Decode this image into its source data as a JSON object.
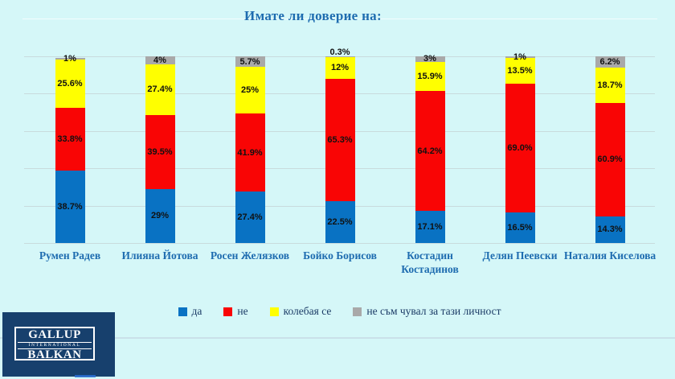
{
  "title": {
    "text": "Имате ли доверие на:",
    "color": "#1E6CB0"
  },
  "chart_data": {
    "type": "bar",
    "stacked": true,
    "title": "Имате ли доверие на:",
    "unit": "%",
    "categories": [
      "Румен Радев",
      "Илияна Йотова",
      "Росен Желязков",
      "Бойко Борисов",
      "Костадин Костадинов",
      "Делян Пеевски",
      "Наталия Киселова"
    ],
    "series": [
      {
        "name": "да",
        "color": "#0972C3",
        "values": [
          38.7,
          29,
          27.4,
          22.5,
          17.1,
          16.5,
          14.3
        ],
        "labels": [
          "38.7%",
          "29%",
          "27.4%",
          "22.5%",
          "17.1%",
          "16.5%",
          "14.3%"
        ]
      },
      {
        "name": "не",
        "color": "#F90505",
        "values": [
          33.8,
          39.5,
          41.9,
          65.3,
          64.2,
          69.0,
          60.9
        ],
        "labels": [
          "33.8%",
          "39.5%",
          "41.9%",
          "65.3%",
          "64.2%",
          "69.0%",
          "60.9%"
        ]
      },
      {
        "name": "колебая се",
        "color": "#FFFF00",
        "values": [
          25.6,
          27.4,
          25,
          12,
          15.9,
          13.5,
          18.7
        ],
        "labels": [
          "25.6%",
          "27.4%",
          "25%",
          "12%",
          "15.9%",
          "13.5%",
          "18.7%"
        ]
      },
      {
        "name": "не съм чувал за тази личност",
        "color": "#A9A9A9",
        "values": [
          1,
          4,
          5.7,
          0.3,
          3,
          1,
          6.2
        ],
        "labels": [
          "1%",
          "4%",
          "5.7%",
          "0.3%",
          "3%",
          "1%",
          "6.2%"
        ]
      }
    ],
    "ylim": [
      0,
      100
    ],
    "gridlines_percent": [
      0,
      20,
      40,
      60,
      80,
      100
    ],
    "grid": true,
    "legend_position": "bottom"
  },
  "logo": {
    "line1": "GALLUP",
    "line2": "INTERNATIONAL",
    "line3": "BALKAN",
    "background": "#17406D"
  }
}
